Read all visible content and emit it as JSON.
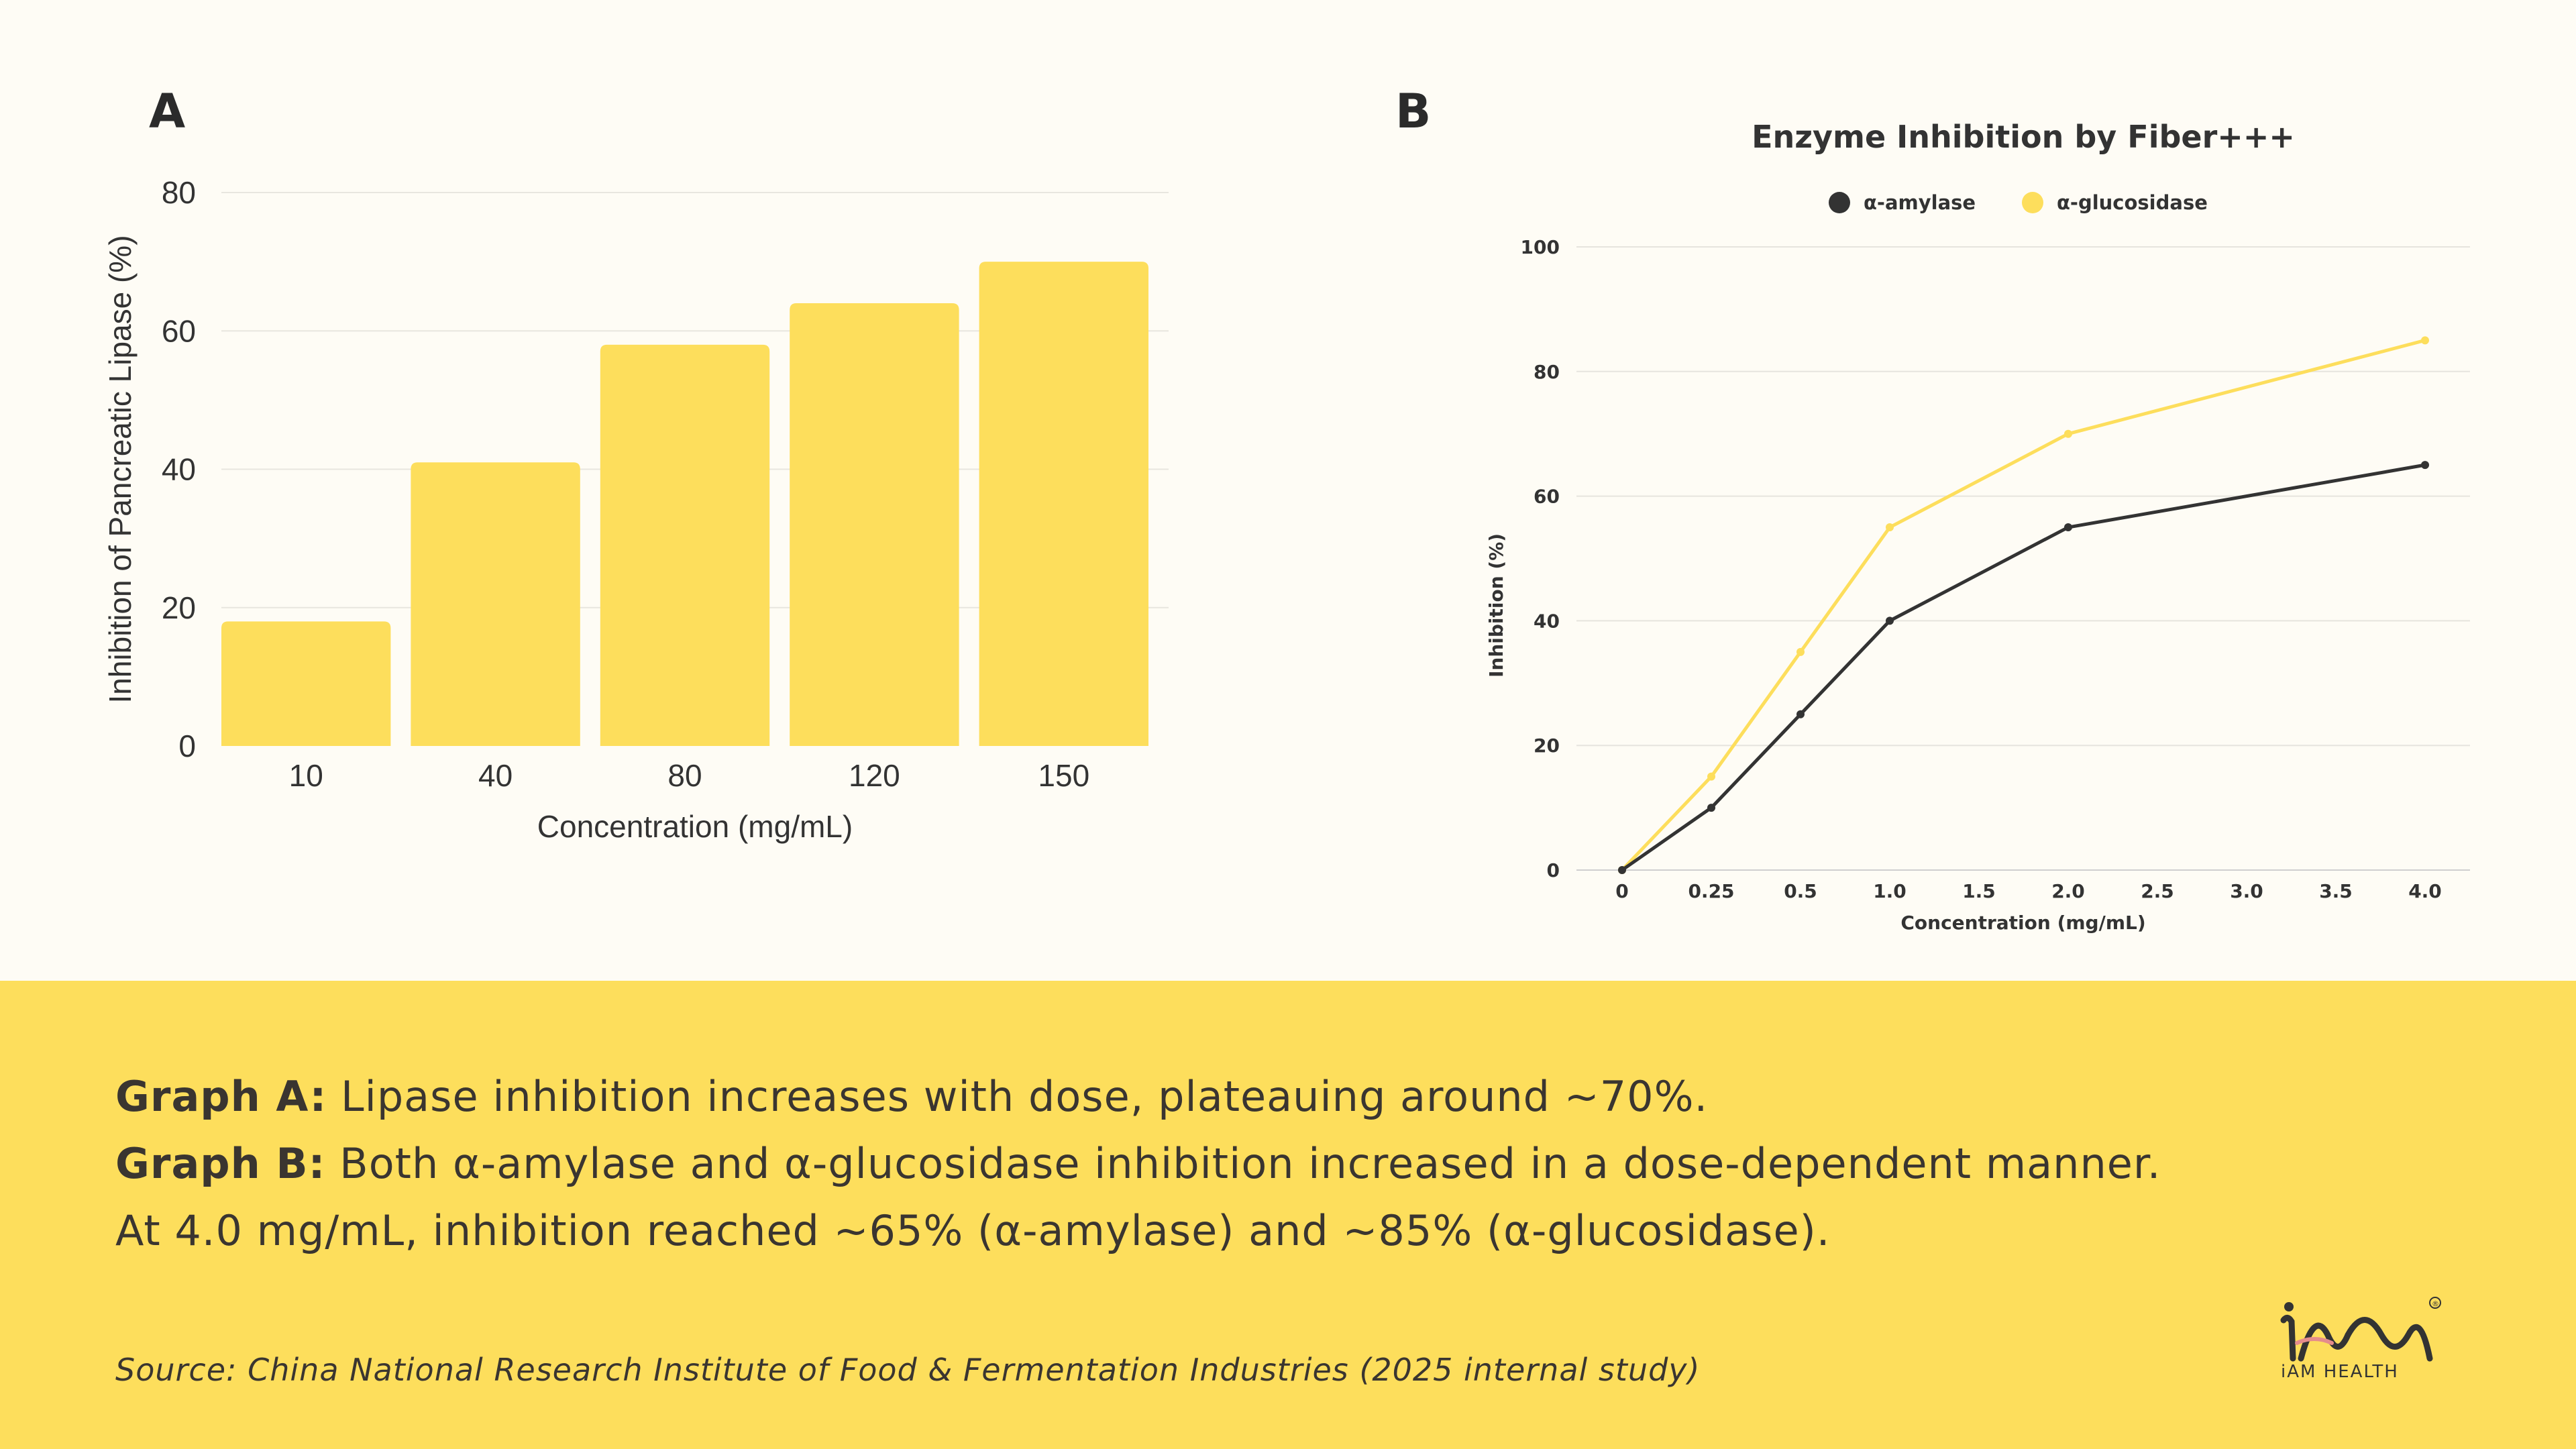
{
  "chart_data": [
    {
      "panel": "A",
      "type": "bar",
      "title": "",
      "categories": [
        "10",
        "40",
        "80",
        "120",
        "150"
      ],
      "values": [
        18,
        41,
        58,
        64,
        70
      ],
      "xlabel": "Concentration (mg/mL)",
      "ylabel": "Inhibition of Pancreatic Lipase (%)",
      "ylim": [
        0,
        80
      ],
      "yticks": [
        0,
        20,
        40,
        60,
        80
      ],
      "grid": true,
      "bar_color": "#FDDE5C"
    },
    {
      "panel": "B",
      "type": "line",
      "title": "Enzyme Inhibition by Fiber+++",
      "x": [
        "0",
        "0.25",
        "0.5",
        "1.0",
        "1.5",
        "2.0",
        "2.5",
        "3.0",
        "3.5",
        "4.0"
      ],
      "series": [
        {
          "name": "α-amylase",
          "color": "#333333",
          "points": [
            [
              "0",
              0
            ],
            [
              "0.25",
              10
            ],
            [
              "0.5",
              25
            ],
            [
              "1.0",
              40
            ],
            [
              "2.0",
              55
            ],
            [
              "4.0",
              65
            ]
          ]
        },
        {
          "name": "α-glucosidase",
          "color": "#FDDE5C",
          "points": [
            [
              "0",
              0
            ],
            [
              "0.25",
              15
            ],
            [
              "0.5",
              35
            ],
            [
              "1.0",
              55
            ],
            [
              "2.0",
              70
            ],
            [
              "4.0",
              85
            ]
          ]
        }
      ],
      "xlabel": "Concentration (mg/mL)",
      "ylabel": "Inhibition (%)",
      "ylim": [
        0,
        100
      ],
      "yticks": [
        0,
        20,
        40,
        60,
        80,
        100
      ],
      "grid": true,
      "legend_position": "top-center"
    }
  ],
  "panels": {
    "a_letter": "A",
    "b_letter": "B"
  },
  "caption": {
    "graph_a_label": "Graph A:",
    "graph_a_text": " Lipase inhibition increases with dose, plateauing around ~70%.",
    "graph_b_label": "Graph B:",
    "graph_b_text": " Both α-amylase and α-glucosidase inhibition increased in a dose-dependent manner.",
    "line3": "At 4.0 mg/mL, inhibition reached ~65% (α-amylase) and ~85% (α-glucosidase).",
    "source": "Source: China National Research Institute of Food & Fermentation Industries (2025 internal study)"
  },
  "logo": {
    "text": "iAM HEALTH",
    "registered": "®"
  }
}
